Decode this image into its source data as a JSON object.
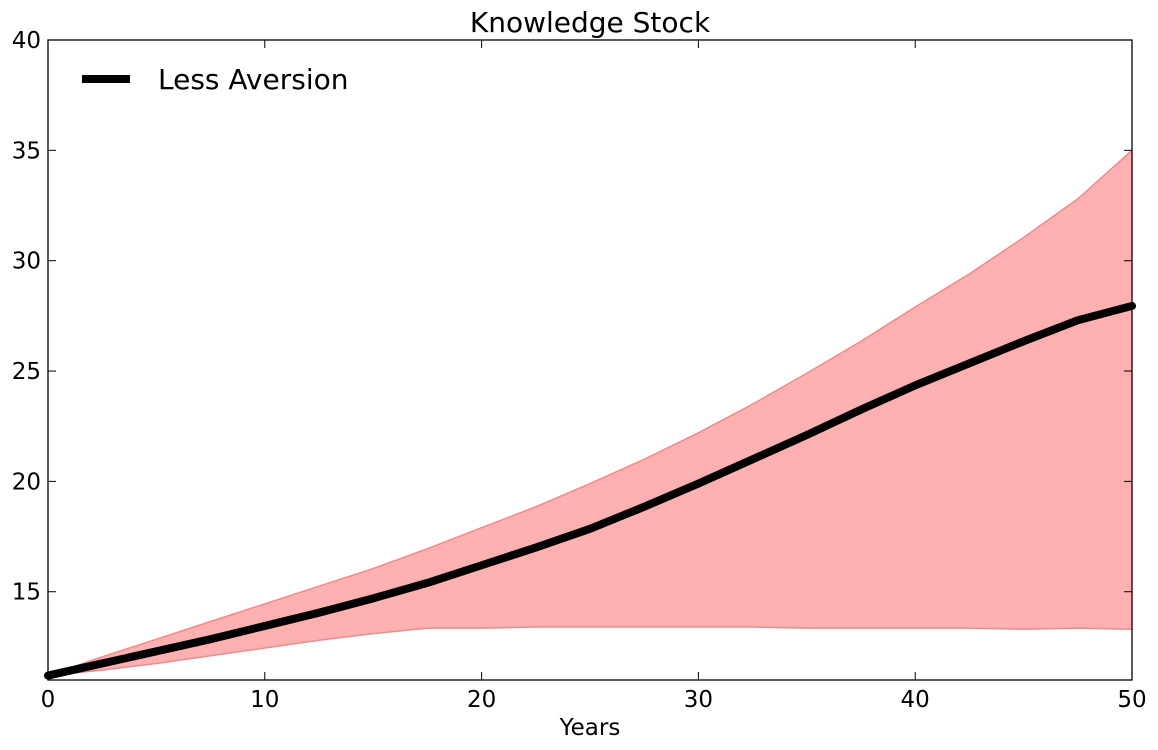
{
  "chart_data": {
    "type": "area",
    "title": "Knowledge Stock",
    "xlabel": "Years",
    "ylabel": "",
    "xlim": [
      0,
      50
    ],
    "ylim": [
      11,
      40
    ],
    "xticks": [
      0,
      10,
      20,
      30,
      40,
      50
    ],
    "yticks": [
      15,
      20,
      25,
      30,
      35,
      40
    ],
    "legend": {
      "placement": "top-left"
    },
    "colors": {
      "band_fill": "#ffb1b1",
      "band_edge": "#f08a8a",
      "line": "#000000"
    },
    "x": [
      0,
      2.5,
      5,
      7.5,
      10,
      12.5,
      15,
      17.5,
      20,
      22.5,
      25,
      27.5,
      30,
      32.5,
      35,
      37.5,
      40,
      42.5,
      45,
      47.5,
      50
    ],
    "series": [
      {
        "name": "Less Aversion",
        "kind": "line",
        "values": [
          11.2,
          11.75,
          12.3,
          12.85,
          13.45,
          14.05,
          14.7,
          15.4,
          16.2,
          17.0,
          17.85,
          18.85,
          19.9,
          21.0,
          22.1,
          23.25,
          24.35,
          25.35,
          26.35,
          27.3,
          27.95
        ]
      },
      {
        "kind": "band",
        "lower": [
          11.2,
          11.45,
          11.75,
          12.1,
          12.45,
          12.8,
          13.1,
          13.35,
          13.35,
          13.4,
          13.4,
          13.4,
          13.4,
          13.4,
          13.35,
          13.35,
          13.35,
          13.35,
          13.3,
          13.35,
          13.3
        ],
        "upper": [
          11.2,
          12.05,
          12.85,
          13.65,
          14.45,
          15.25,
          16.05,
          16.95,
          17.9,
          18.85,
          19.9,
          21.0,
          22.2,
          23.5,
          24.9,
          26.35,
          27.9,
          29.4,
          31.05,
          32.8,
          35.0
        ]
      }
    ]
  }
}
